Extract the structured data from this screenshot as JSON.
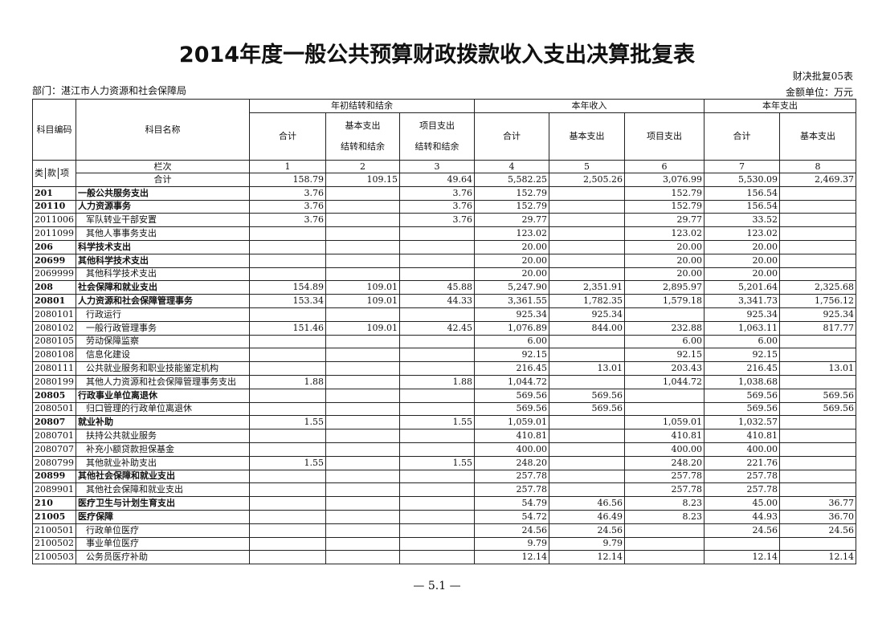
{
  "header": {
    "title": "2014年度一般公共预算财政拨款收入支出决算批复表",
    "form_no": "财决批复05表",
    "unit": "金额单位：万元",
    "department": "部门：湛江市人力资源和社会保障局"
  },
  "table": {
    "groups": [
      "年初结转和结余",
      "本年收入",
      "本年支出"
    ],
    "code_header": "科目编码",
    "name_header": "科目名称",
    "columns": [
      [
        "合计"
      ],
      [
        "基本支出",
        "结转和结余"
      ],
      [
        "项目支出",
        "结转和结余"
      ],
      [
        "合计"
      ],
      [
        "基本支出"
      ],
      [
        "项目支出"
      ],
      [
        "合计"
      ],
      [
        "基本支出"
      ]
    ],
    "level_labels": [
      "类",
      "款",
      "项"
    ],
    "column_index_label": "栏次",
    "column_numbers": [
      "1",
      "2",
      "3",
      "4",
      "5",
      "6",
      "7",
      "8"
    ],
    "rows": [
      {
        "code": null,
        "name": "合计",
        "values": [
          "158.79",
          "109.15",
          "49.64",
          "5,582.25",
          "2,505.26",
          "3,076.99",
          "5,530.09",
          "2,469.37"
        ]
      },
      {
        "code": "201",
        "name": "一般公共服务支出",
        "values": [
          "3.76",
          null,
          "3.76",
          "152.79",
          null,
          "152.79",
          "156.54",
          null
        ]
      },
      {
        "code": "20110",
        "name": "人力资源事务",
        "values": [
          "3.76",
          null,
          "3.76",
          "152.79",
          null,
          "152.79",
          "156.54",
          null
        ]
      },
      {
        "code": "2011006",
        "name": "军队转业干部安置",
        "values": [
          "3.76",
          null,
          "3.76",
          "29.77",
          null,
          "29.77",
          "33.52",
          null
        ]
      },
      {
        "code": "2011099",
        "name": "其他人事事务支出",
        "values": [
          null,
          null,
          null,
          "123.02",
          null,
          "123.02",
          "123.02",
          null
        ]
      },
      {
        "code": "206",
        "name": "科学技术支出",
        "values": [
          null,
          null,
          null,
          "20.00",
          null,
          "20.00",
          "20.00",
          null
        ]
      },
      {
        "code": "20699",
        "name": "其他科学技术支出",
        "values": [
          null,
          null,
          null,
          "20.00",
          null,
          "20.00",
          "20.00",
          null
        ]
      },
      {
        "code": "2069999",
        "name": "其他科学技术支出",
        "values": [
          null,
          null,
          null,
          "20.00",
          null,
          "20.00",
          "20.00",
          null
        ]
      },
      {
        "code": "208",
        "name": "社会保障和就业支出",
        "values": [
          "154.89",
          "109.01",
          "45.88",
          "5,247.90",
          "2,351.91",
          "2,895.97",
          "5,201.64",
          "2,325.68"
        ]
      },
      {
        "code": "20801",
        "name": "人力资源和社会保障管理事务",
        "values": [
          "153.34",
          "109.01",
          "44.33",
          "3,361.55",
          "1,782.35",
          "1,579.18",
          "3,341.73",
          "1,756.12"
        ]
      },
      {
        "code": "2080101",
        "name": "行政运行",
        "values": [
          null,
          null,
          null,
          "925.34",
          "925.34",
          null,
          "925.34",
          "925.34"
        ]
      },
      {
        "code": "2080102",
        "name": "一般行政管理事务",
        "values": [
          "151.46",
          "109.01",
          "42.45",
          "1,076.89",
          "844.00",
          "232.88",
          "1,063.11",
          "817.77"
        ]
      },
      {
        "code": "2080105",
        "name": "劳动保障监察",
        "values": [
          null,
          null,
          null,
          "6.00",
          null,
          "6.00",
          "6.00",
          null
        ]
      },
      {
        "code": "2080108",
        "name": "信息化建设",
        "values": [
          null,
          null,
          null,
          "92.15",
          null,
          "92.15",
          "92.15",
          null
        ]
      },
      {
        "code": "2080111",
        "name": "公共就业服务和职业技能鉴定机构",
        "values": [
          null,
          null,
          null,
          "216.45",
          "13.01",
          "203.43",
          "216.45",
          "13.01"
        ]
      },
      {
        "code": "2080199",
        "name": "其他人力资源和社会保障管理事务支出",
        "values": [
          "1.88",
          null,
          "1.88",
          "1,044.72",
          null,
          "1,044.72",
          "1,038.68",
          null
        ]
      },
      {
        "code": "20805",
        "name": "行政事业单位离退休",
        "values": [
          null,
          null,
          null,
          "569.56",
          "569.56",
          null,
          "569.56",
          "569.56"
        ]
      },
      {
        "code": "2080501",
        "name": "归口管理的行政单位离退休",
        "values": [
          null,
          null,
          null,
          "569.56",
          "569.56",
          null,
          "569.56",
          "569.56"
        ]
      },
      {
        "code": "20807",
        "name": "就业补助",
        "values": [
          "1.55",
          null,
          "1.55",
          "1,059.01",
          null,
          "1,059.01",
          "1,032.57",
          null
        ]
      },
      {
        "code": "2080701",
        "name": "扶持公共就业服务",
        "values": [
          null,
          null,
          null,
          "410.81",
          null,
          "410.81",
          "410.81",
          null
        ]
      },
      {
        "code": "2080707",
        "name": "补充小额贷款担保基金",
        "values": [
          null,
          null,
          null,
          "400.00",
          null,
          "400.00",
          "400.00",
          null
        ]
      },
      {
        "code": "2080799",
        "name": "其他就业补助支出",
        "values": [
          "1.55",
          null,
          "1.55",
          "248.20",
          null,
          "248.20",
          "221.76",
          null
        ]
      },
      {
        "code": "20899",
        "name": "其他社会保障和就业支出",
        "values": [
          null,
          null,
          null,
          "257.78",
          null,
          "257.78",
          "257.78",
          null
        ]
      },
      {
        "code": "2089901",
        "name": "其他社会保障和就业支出",
        "values": [
          null,
          null,
          null,
          "257.78",
          null,
          "257.78",
          "257.78",
          null
        ]
      },
      {
        "code": "210",
        "name": "医疗卫生与计划生育支出",
        "values": [
          null,
          null,
          null,
          "54.79",
          "46.56",
          "8.23",
          "45.00",
          "36.77"
        ]
      },
      {
        "code": "21005",
        "name": "医疗保障",
        "values": [
          null,
          null,
          null,
          "54.72",
          "46.49",
          "8.23",
          "44.93",
          "36.70"
        ]
      },
      {
        "code": "2100501",
        "name": "行政单位医疗",
        "values": [
          null,
          null,
          null,
          "24.56",
          "24.56",
          null,
          "24.56",
          "24.56"
        ]
      },
      {
        "code": "2100502",
        "name": "事业单位医疗",
        "values": [
          null,
          null,
          null,
          "9.79",
          "9.79",
          null,
          null,
          null
        ]
      },
      {
        "code": "2100503",
        "name": "公务员医疗补助",
        "values": [
          null,
          null,
          null,
          "12.14",
          "12.14",
          null,
          "12.14",
          "12.14"
        ]
      }
    ]
  },
  "footer": {
    "page": "— 5.1 —"
  }
}
